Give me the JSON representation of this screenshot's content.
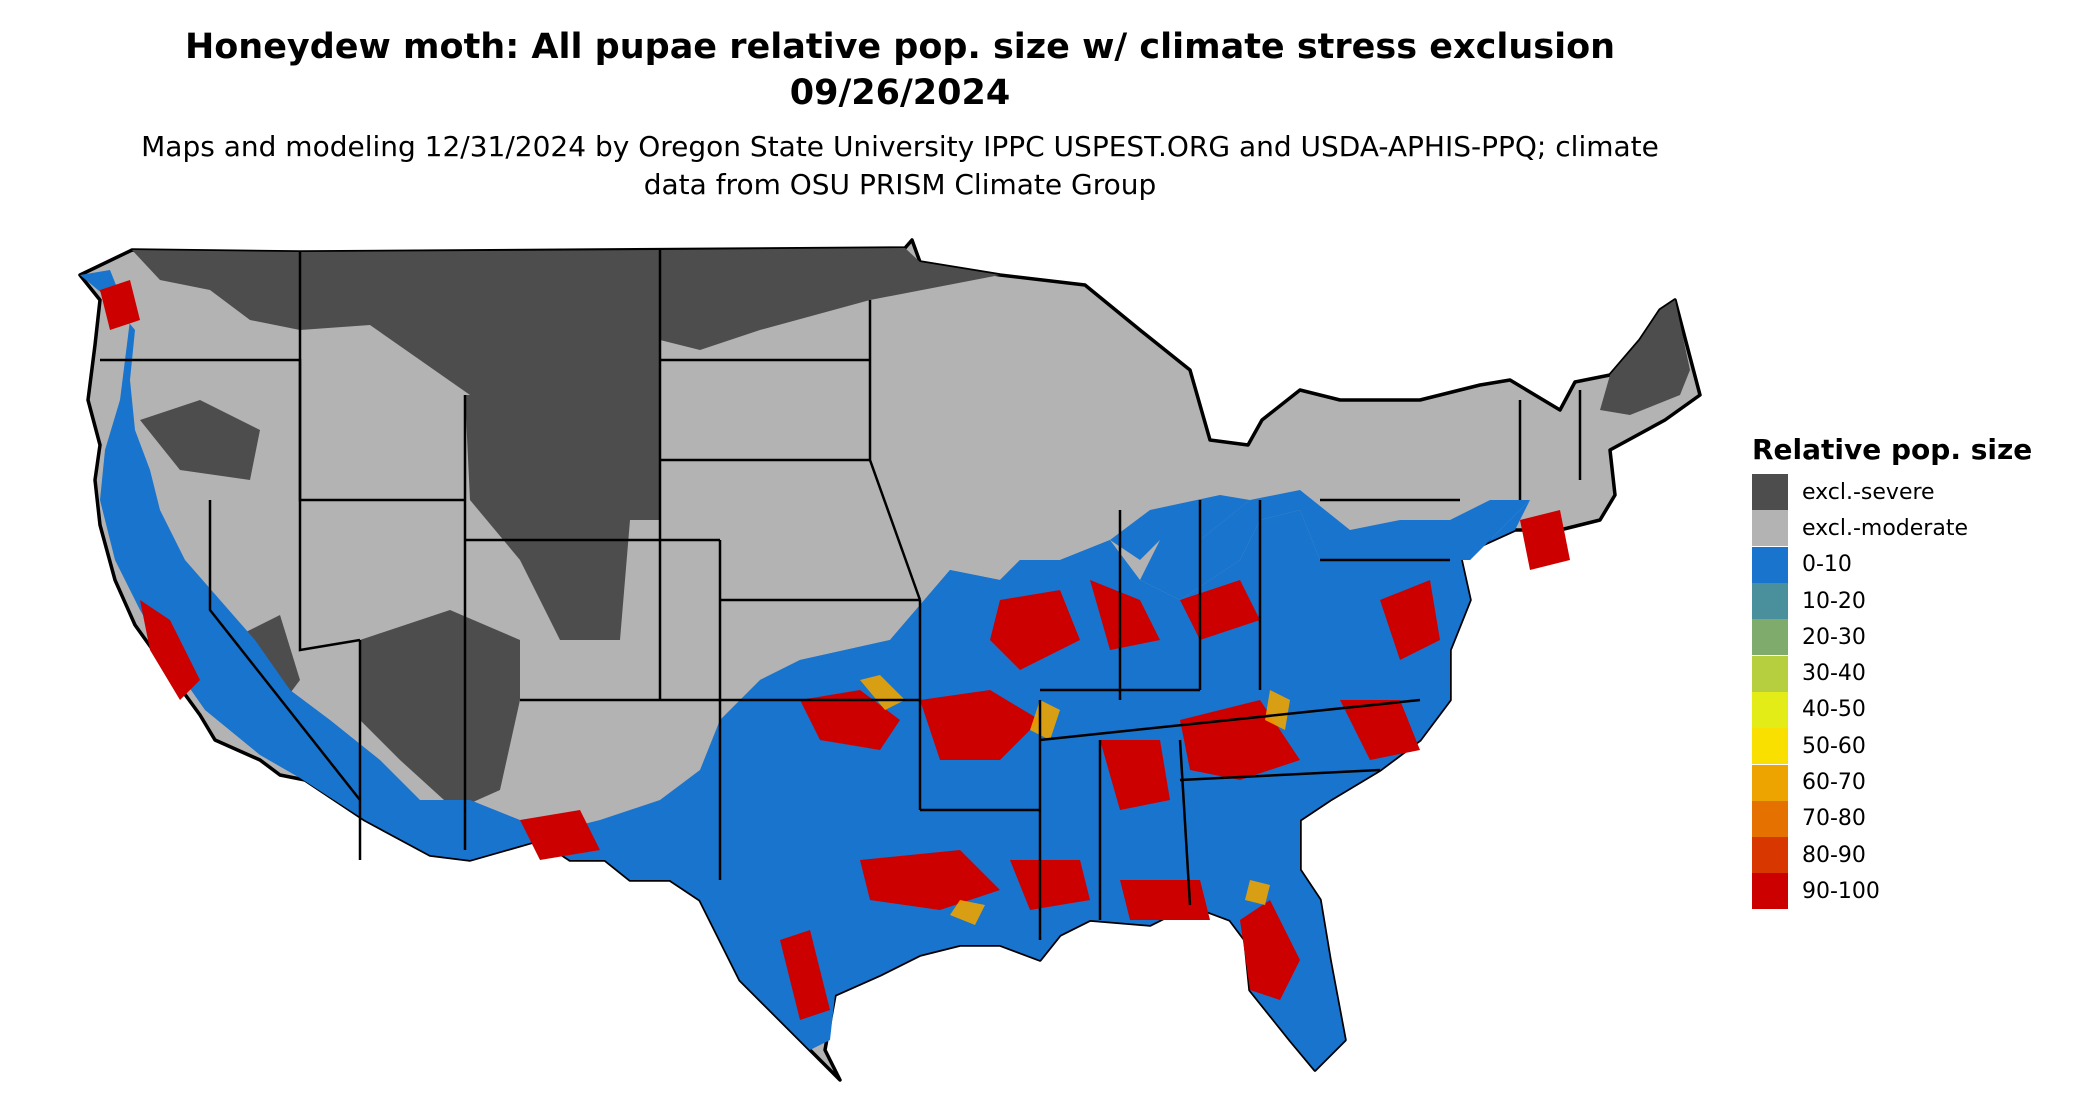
{
  "title": "Honeydew moth: All pupae relative pop. size w/ climate stress exclusion 09/26/2024",
  "subtitle": "Maps and modeling 12/31/2024 by Oregon State University IPPC USPEST.ORG and USDA-APHIS-PPQ; climate data from OSU PRISM Climate Group",
  "legend": {
    "title": "Relative pop. size",
    "items": [
      {
        "label": "excl.-severe",
        "color": "#4d4d4d"
      },
      {
        "label": "excl.-moderate",
        "color": "#b3b3b3"
      },
      {
        "label": "0-10",
        "color": "#1874cd"
      },
      {
        "label": "10-20",
        "color": "#4a8f9c"
      },
      {
        "label": "20-30",
        "color": "#7fab6c"
      },
      {
        "label": "30-40",
        "color": "#b5cf3f"
      },
      {
        "label": "40-50",
        "color": "#e3ec17"
      },
      {
        "label": "50-60",
        "color": "#f9e000"
      },
      {
        "label": "60-70",
        "color": "#eea400"
      },
      {
        "label": "70-80",
        "color": "#e47100"
      },
      {
        "label": "80-90",
        "color": "#d83800"
      },
      {
        "label": "90-100",
        "color": "#cd0000"
      }
    ]
  }
}
